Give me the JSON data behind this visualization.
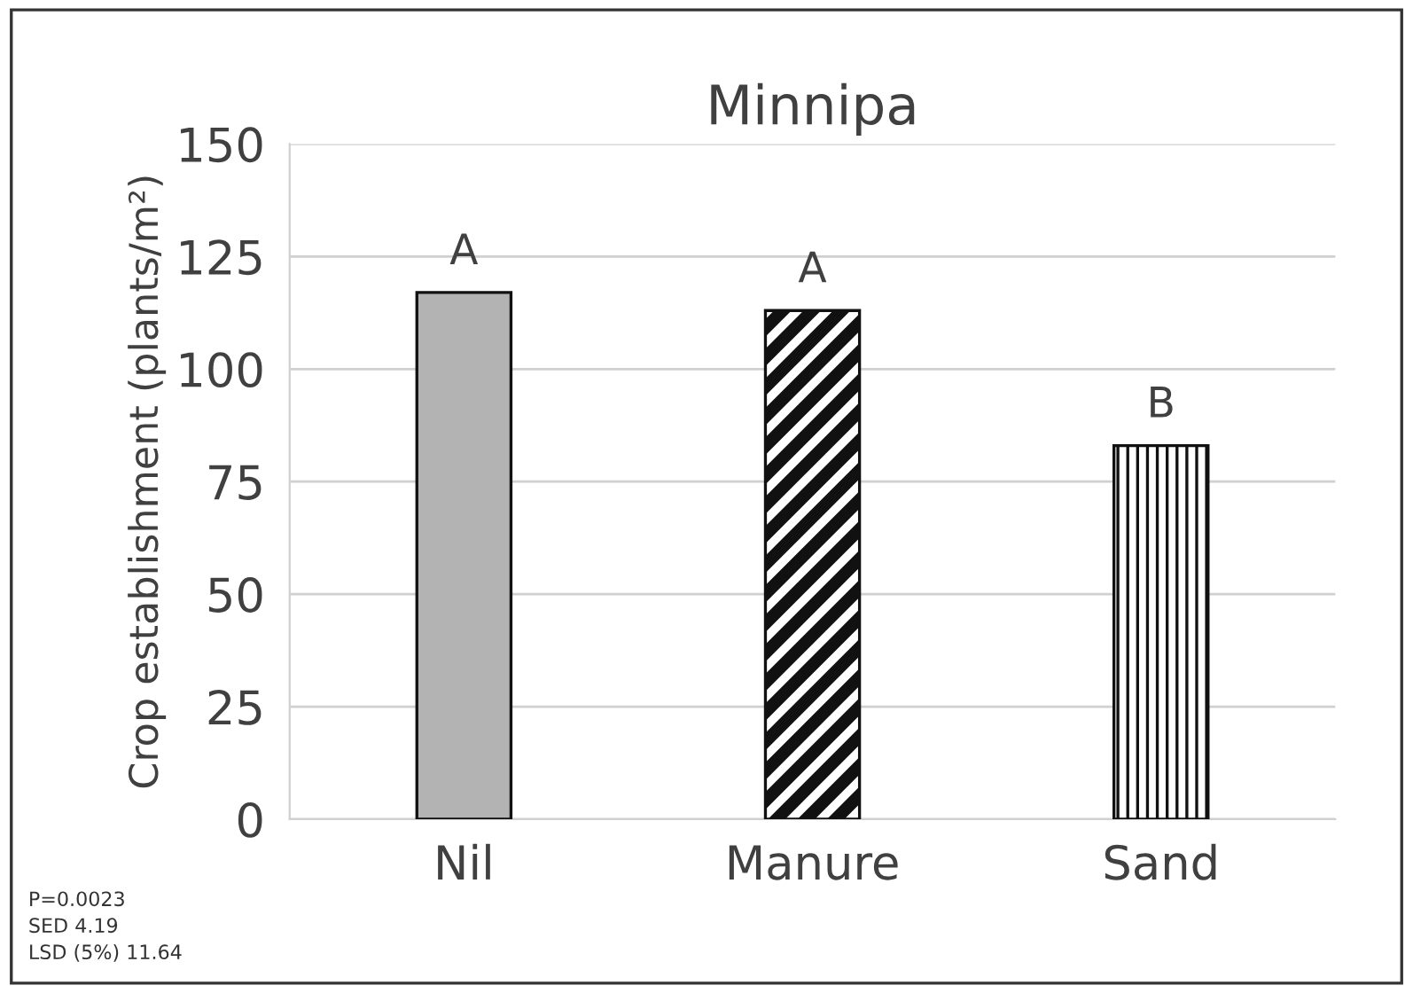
{
  "chart_data": {
    "type": "bar",
    "title": "Minnipa",
    "ylabel": "Crop establishment (plants/m²)",
    "categories": [
      "Nil",
      "Manure",
      "Sand"
    ],
    "values": [
      117,
      113,
      83
    ],
    "colors": [
      "#b3b3b3",
      "#111111",
      "#111111"
    ],
    "ylim": [
      0,
      150
    ],
    "yticks": [
      0,
      25,
      50,
      75,
      100,
      125,
      150
    ],
    "grid": "y",
    "annotations": [
      {
        "text": "A",
        "x": "Nil",
        "y": 117
      },
      {
        "text": "A",
        "x": "Manure",
        "y": 113
      },
      {
        "text": "B",
        "x": "Sand",
        "y": 83
      },
      "P=0.0023\nSED 4.19\nLSD (5%) 11.64"
    ]
  }
}
